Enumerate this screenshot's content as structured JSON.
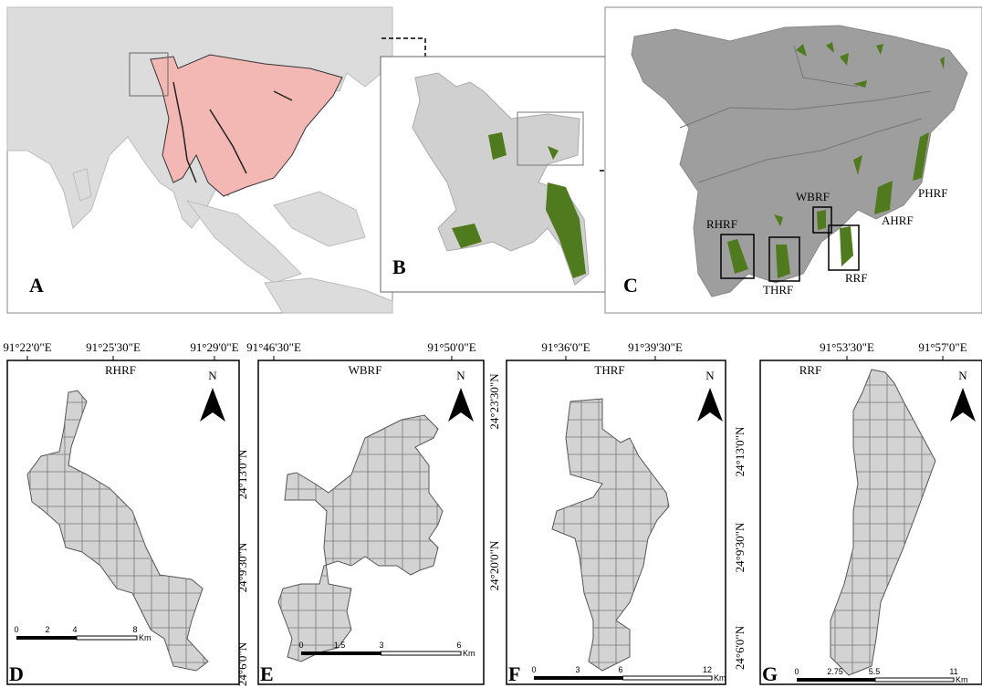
{
  "panel_a": {
    "label": "A"
  },
  "panel_b": {
    "label": "B"
  },
  "panel_c": {
    "label": "C",
    "forest_labels": [
      "RHRF",
      "WBRF",
      "AHRF",
      "PHRF",
      "THRF",
      "RRF"
    ]
  },
  "insets": [
    {
      "label": "D",
      "title": "RHRF",
      "north": "N",
      "lon_labels": [
        "91°22'0\"E",
        "91°25'30\"E",
        "91°29'0\"E"
      ],
      "lat_labels": [
        "24°13'0\"N",
        "24°9'30\"N",
        "24°6'0\"N"
      ],
      "scale_labels": [
        "0",
        "2",
        "4",
        "8"
      ],
      "scale_unit": "Km"
    },
    {
      "label": "E",
      "title": "WBRF",
      "north": "N",
      "lon_labels": [
        "91°46'30\"E",
        "91°50'0\"E"
      ],
      "lat_labels": [
        "24°23'30\"N",
        "24°20'0\"N"
      ],
      "scale_labels": [
        "0",
        "1.5",
        "3",
        "6"
      ],
      "scale_unit": "Km"
    },
    {
      "label": "F",
      "title": "THRF",
      "north": "N",
      "lon_labels": [
        "91°36'0\"E",
        "91°39'30\"E"
      ],
      "lat_labels": [],
      "scale_labels": [
        "0",
        "3",
        "6",
        "12"
      ],
      "scale_unit": "Km"
    },
    {
      "label": "G",
      "title": "RRF",
      "north": "N",
      "lon_labels": [
        "91°53'30\"E",
        "91°57'0\"E"
      ],
      "lat_labels": [
        "24°13'0\"N",
        "24°9'30\"N",
        "24°6'0\"N"
      ],
      "scale_labels": [
        "0",
        "2.75",
        "5.5",
        "11"
      ],
      "scale_unit": "Km"
    }
  ]
}
